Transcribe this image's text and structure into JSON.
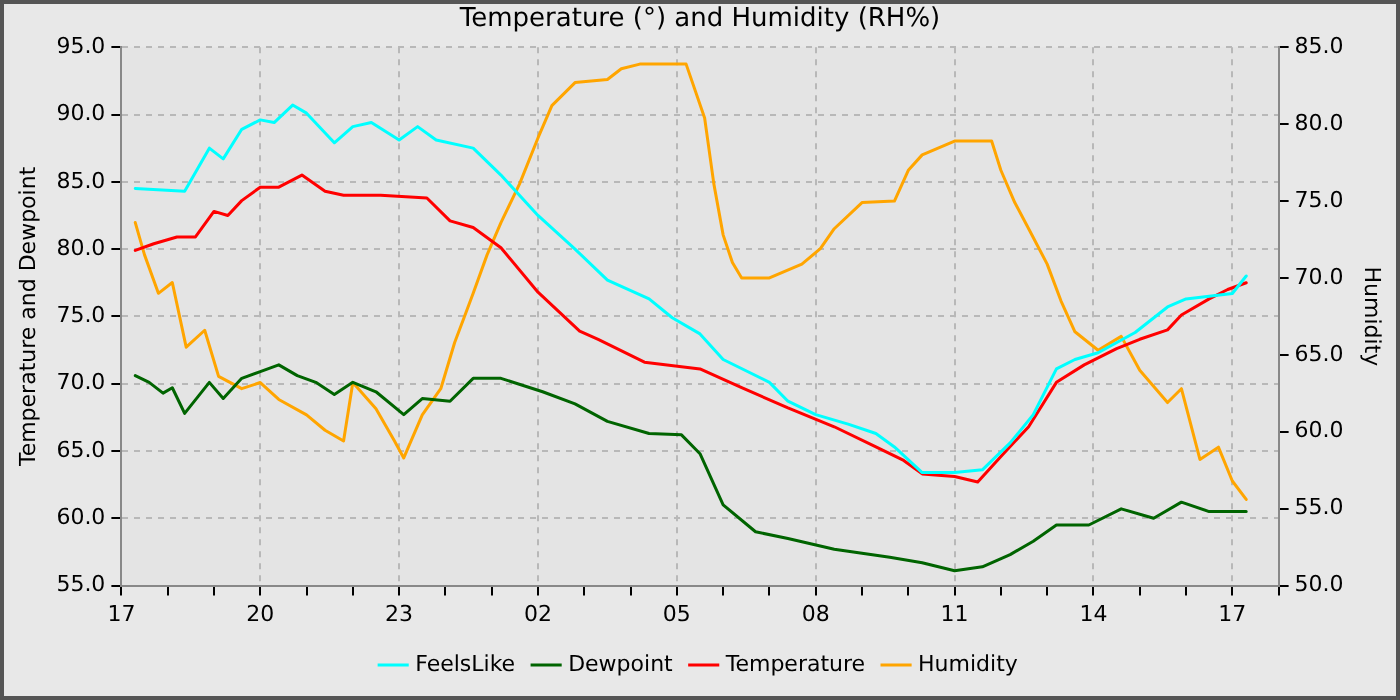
{
  "chart_data": {
    "type": "line",
    "title": "Temperature (°) and Humidity (RH%)",
    "ylabel": "Temperature and Dewpoint",
    "y2label": "Humidity",
    "xlim": [
      "--01-01T17:00",
      "--01-02T18:00"
    ],
    "xticks": [
      {
        "value": "--01-01T17:00",
        "label": "17"
      },
      {
        "value": "--01-01T18:00",
        "label": null
      },
      {
        "value": "--01-01T19:00",
        "label": null
      },
      {
        "value": "--01-01T20:00",
        "label": "20"
      },
      {
        "value": "--01-01T21:00",
        "label": null
      },
      {
        "value": "--01-01T22:00",
        "label": null
      },
      {
        "value": "--01-01T23:00",
        "label": "23"
      },
      {
        "value": "--01-02T00:00",
        "label": null
      },
      {
        "value": "--01-02T01:00",
        "label": null
      },
      {
        "value": "--01-02T02:00",
        "label": "02"
      },
      {
        "value": "--01-02T03:00",
        "label": null
      },
      {
        "value": "--01-02T04:00",
        "label": null
      },
      {
        "value": "--01-02T05:00",
        "label": "05"
      },
      {
        "value": "--01-02T06:00",
        "label": null
      },
      {
        "value": "--01-02T07:00",
        "label": null
      },
      {
        "value": "--01-02T08:00",
        "label": "08"
      },
      {
        "value": "--01-02T09:00",
        "label": null
      },
      {
        "value": "--01-02T10:00",
        "label": null
      },
      {
        "value": "--01-02T11:00",
        "label": "11"
      },
      {
        "value": "--01-02T12:00",
        "label": null
      },
      {
        "value": "--01-02T13:00",
        "label": null
      },
      {
        "value": "--01-02T14:00",
        "label": "14"
      },
      {
        "value": "--01-02T15:00",
        "label": null
      },
      {
        "value": "--01-02T16:00",
        "label": null
      },
      {
        "value": "--01-02T17:00",
        "label": "17"
      },
      {
        "value": "--01-02T18:00",
        "label": null
      }
    ],
    "ylim": [
      55,
      95
    ],
    "yticks": [
      {
        "value": 55,
        "label": "55.0"
      },
      {
        "value": 60,
        "label": "60.0"
      },
      {
        "value": 65,
        "label": "65.0"
      },
      {
        "value": 70,
        "label": "70.0"
      },
      {
        "value": 75,
        "label": "75.0"
      },
      {
        "value": 80,
        "label": "80.0"
      },
      {
        "value": 85,
        "label": "85.0"
      },
      {
        "value": 90,
        "label": "90.0"
      },
      {
        "value": 95,
        "label": "95.0"
      }
    ],
    "y2lim": [
      50,
      85
    ],
    "y2ticks": [
      {
        "value": 50,
        "label": "50.0"
      },
      {
        "value": 55,
        "label": "55.0"
      },
      {
        "value": 60,
        "label": "60.0"
      },
      {
        "value": 65,
        "label": "65.0"
      },
      {
        "value": 70,
        "label": "70.0"
      },
      {
        "value": 75,
        "label": "75.0"
      },
      {
        "value": 80,
        "label": "80.0"
      },
      {
        "value": 85,
        "label": "85.0"
      }
    ],
    "grid": true,
    "legend": "bottom",
    "marker": "none",
    "line_style": "solid",
    "series": [
      {
        "name": "FeelsLike",
        "color": "#00ffff",
        "x": [
          "--01-01T17:18",
          "--01-01T18:22",
          "--01-01T18:54",
          "--01-01T19:12",
          "--01-01T19:36",
          "--01-01T20:00",
          "--01-01T20:18",
          "--01-01T20:42",
          "--01-01T21:00",
          "--01-01T21:36",
          "--01-01T22:00",
          "--01-01T22:24",
          "--01-01T23:00",
          "--01-01T23:24",
          "--01-01T23:48",
          "--01-02T00:36",
          "--01-02T01:12",
          "--01-02T02:00",
          "--01-02T02:48",
          "--01-02T03:30",
          "--01-02T04:24",
          "--01-02T04:54",
          "--01-02T05:30",
          "--01-02T06:00",
          "--01-02T07:00",
          "--01-02T07:24",
          "--01-02T08:00",
          "--01-02T08:42",
          "--01-02T09:18",
          "--01-02T09:42",
          "--01-02T10:18",
          "--01-02T11:00",
          "--01-02T11:36",
          "--01-02T12:12",
          "--01-02T12:42",
          "--01-02T13:12",
          "--01-02T13:36",
          "--01-02T14:06",
          "--01-02T14:54",
          "--01-02T15:36",
          "--01-02T16:00",
          "--01-02T17:00",
          "--01-02T17:18"
        ],
        "values": [
          84.5,
          84.3,
          87.5,
          86.7,
          88.9,
          89.6,
          89.4,
          90.7,
          90.1,
          87.9,
          89.1,
          89.4,
          88.1,
          89.1,
          88.1,
          87.5,
          85.5,
          82.5,
          80,
          77.7,
          76.3,
          74.9,
          73.7,
          71.8,
          70.1,
          68.7,
          67.7,
          67,
          66.3,
          65.3,
          63.4,
          63.4,
          63.6,
          65.6,
          67.7,
          71.1,
          71.8,
          72.3,
          73.8,
          75.7,
          76.3,
          76.7,
          78
        ]
      },
      {
        "name": "Dewpoint",
        "color": "#006400",
        "x": [
          "--01-01T17:18",
          "--01-01T17:36",
          "--01-01T17:54",
          "--01-01T18:06",
          "--01-01T18:22",
          "--01-01T18:54",
          "--01-01T19:12",
          "--01-01T19:36",
          "--01-01T20:00",
          "--01-01T20:24",
          "--01-01T20:48",
          "--01-01T21:12",
          "--01-01T21:36",
          "--01-01T22:00",
          "--01-01T22:30",
          "--01-01T23:06",
          "--01-01T23:30",
          "--01-02T00:06",
          "--01-02T00:36",
          "--01-02T01:12",
          "--01-02T02:06",
          "--01-02T02:48",
          "--01-02T03:30",
          "--01-02T04:24",
          "--01-02T05:06",
          "--01-02T05:30",
          "--01-02T06:00",
          "--01-02T06:42",
          "--01-02T07:24",
          "--01-02T08:24",
          "--01-02T09:36",
          "--01-02T10:18",
          "--01-02T11:00",
          "--01-02T11:36",
          "--01-02T12:12",
          "--01-02T12:42",
          "--01-02T13:12",
          "--01-02T13:54",
          "--01-02T14:36",
          "--01-02T15:18",
          "--01-02T15:54",
          "--01-02T16:30",
          "--01-02T17:18"
        ],
        "values": [
          70.6,
          70.1,
          69.3,
          69.7,
          67.8,
          70.1,
          68.9,
          70.4,
          70.9,
          71.4,
          70.6,
          70.1,
          69.2,
          70.1,
          69.4,
          67.7,
          68.9,
          68.7,
          70.4,
          70.4,
          69.4,
          68.5,
          67.2,
          66.3,
          66.2,
          64.8,
          61,
          59,
          58.5,
          57.7,
          57.1,
          56.7,
          56.1,
          56.4,
          57.3,
          58.3,
          59.5,
          59.5,
          60.7,
          60,
          61.2,
          60.5,
          60.5
        ]
      },
      {
        "name": "Temperature",
        "color": "#ff0000",
        "x": [
          "--01-01T17:18",
          "--01-01T17:42",
          "--01-01T18:12",
          "--01-01T18:36",
          "--01-01T19:00",
          "--01-01T19:18",
          "--01-01T19:36",
          "--01-01T20:00",
          "--01-01T20:24",
          "--01-01T20:54",
          "--01-01T21:24",
          "--01-01T21:48",
          "--01-01T22:36",
          "--01-01T23:36",
          "--01-02T00:06",
          "--01-02T00:36",
          "--01-02T01:12",
          "--01-02T02:00",
          "--01-02T02:54",
          "--01-02T03:18",
          "--01-02T04:18",
          "--01-02T05:30",
          "--01-02T06:24",
          "--01-02T07:24",
          "--01-02T08:24",
          "--01-02T09:18",
          "--01-02T09:54",
          "--01-02T10:18",
          "--01-02T11:00",
          "--01-02T11:30",
          "--01-02T12:00",
          "--01-02T12:36",
          "--01-02T13:12",
          "--01-02T13:48",
          "--01-02T14:30",
          "--01-02T15:00",
          "--01-02T15:36",
          "--01-02T15:54",
          "--01-02T16:30",
          "--01-02T16:54",
          "--01-02T17:18"
        ],
        "values": [
          79.9,
          80.4,
          80.9,
          80.9,
          82.8,
          82.5,
          83.6,
          84.6,
          84.6,
          85.5,
          84.3,
          84,
          84,
          83.8,
          82.1,
          81.6,
          80.1,
          76.8,
          73.9,
          73.3,
          71.6,
          71.1,
          69.7,
          68.2,
          66.8,
          65.3,
          64.3,
          63.3,
          63.1,
          62.7,
          64.6,
          66.8,
          70.1,
          71.4,
          72.6,
          73.3,
          74,
          75.1,
          76.3,
          77,
          77.5
        ]
      },
      {
        "name": "Humidity",
        "color": "#ffa500",
        "axis": "y2",
        "x": [
          "--01-01T17:18",
          "--01-01T17:30",
          "--01-01T17:48",
          "--01-01T18:06",
          "--01-01T18:24",
          "--01-01T18:48",
          "--01-01T19:06",
          "--01-01T19:36",
          "--01-01T20:00",
          "--01-01T20:24",
          "--01-01T21:00",
          "--01-01T21:24",
          "--01-01T21:48",
          "--01-01T22:00",
          "--01-01T22:30",
          "--01-01T22:54",
          "--01-01T23:06",
          "--01-01T23:30",
          "--01-01T23:54",
          "--01-02T00:12",
          "--01-02T00:24",
          "--01-02T00:36",
          "--01-02T00:54",
          "--01-02T01:12",
          "--01-02T01:36",
          "--01-02T02:00",
          "--01-02T02:18",
          "--01-02T02:48",
          "--01-02T03:30",
          "--01-02T03:48",
          "--01-02T04:12",
          "--01-02T05:12",
          "--01-02T05:36",
          "--01-02T05:48",
          "--01-02T06:00",
          "--01-02T06:12",
          "--01-02T06:24",
          "--01-02T07:00",
          "--01-02T07:42",
          "--01-02T08:06",
          "--01-02T08:24",
          "--01-02T09:00",
          "--01-02T09:42",
          "--01-02T10:00",
          "--01-02T10:18",
          "--01-02T11:00",
          "--01-02T11:48",
          "--01-02T12:00",
          "--01-02T12:18",
          "--01-02T12:36",
          "--01-02T13:00",
          "--01-02T13:18",
          "--01-02T13:36",
          "--01-02T14:06",
          "--01-02T14:36",
          "--01-02T15:00",
          "--01-02T15:36",
          "--01-02T15:54",
          "--01-02T16:18",
          "--01-02T16:42",
          "--01-02T17:00",
          "--01-02T17:18"
        ],
        "values": [
          73.6,
          71.5,
          69,
          69.7,
          65.5,
          66.6,
          63.6,
          62.8,
          63.2,
          62.1,
          61.1,
          60.1,
          59.4,
          63.2,
          61.5,
          59.4,
          58.3,
          61.1,
          62.8,
          65.8,
          67.4,
          69,
          71.5,
          73.6,
          76.1,
          79.1,
          81.2,
          82.7,
          82.9,
          83.6,
          83.9,
          83.9,
          80.4,
          76.1,
          72.8,
          71,
          70,
          70,
          70.9,
          71.9,
          73.2,
          74.9,
          75,
          77,
          78,
          78.9,
          78.9,
          77,
          74.9,
          73.2,
          70.9,
          68.5,
          66.5,
          65.3,
          66.2,
          64,
          61.9,
          62.8,
          58.2,
          59,
          56.8,
          55.6
        ]
      }
    ]
  }
}
